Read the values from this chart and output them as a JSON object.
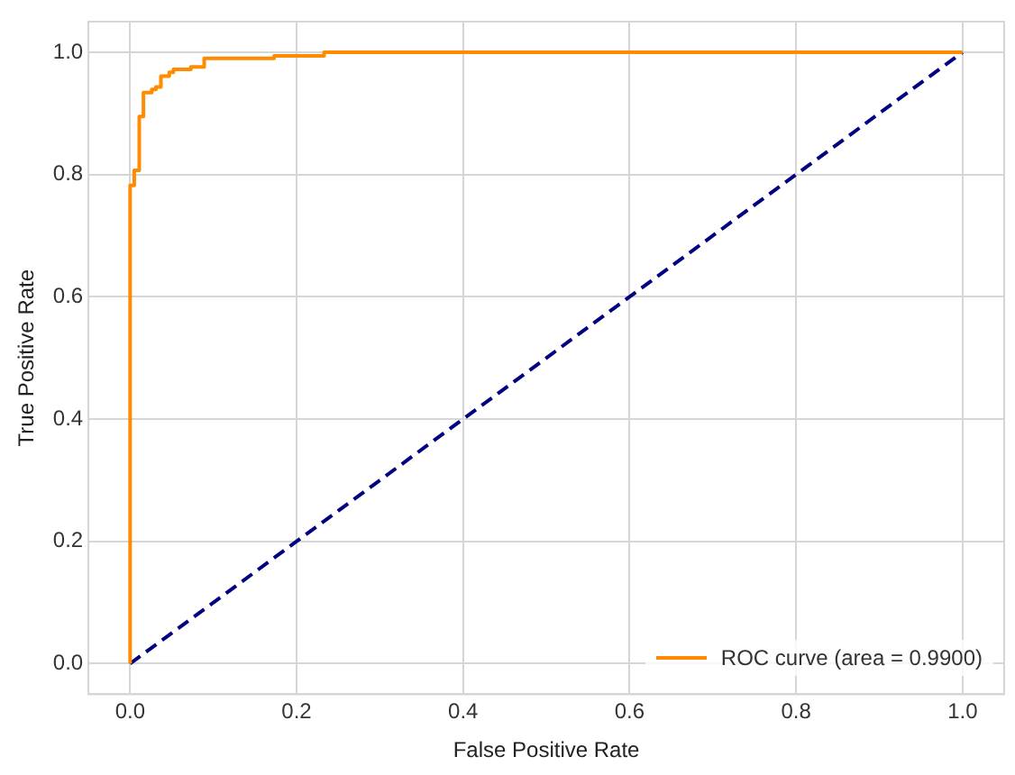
{
  "chart_data": {
    "type": "line",
    "xlabel": "False Positive Rate",
    "ylabel": "True Positive Rate",
    "series": [
      {
        "name": "ROC curve (area = 0.9900)",
        "type": "step",
        "color": "#ff8c00",
        "line_style": "solid",
        "x": [
          0,
          0,
          0.005,
          0.011,
          0.016,
          0.026,
          0.031,
          0.037,
          0.047,
          0.052,
          0.073,
          0.089,
          0.173,
          0.233,
          0.262,
          1
        ],
        "values": [
          0,
          0.748,
          0.782,
          0.807,
          0.895,
          0.934,
          0.939,
          0.943,
          0.961,
          0.967,
          0.972,
          0.976,
          0.99,
          0.994,
          1,
          1
        ]
      },
      {
        "type": "line",
        "color": "#000080",
        "line_style": "dashed",
        "x": [
          0,
          1
        ],
        "values": [
          0,
          1
        ]
      }
    ],
    "xlim": [
      -0.05,
      1.05
    ],
    "ylim": [
      -0.05,
      1.05
    ],
    "xticks": [
      {
        "value": 0,
        "label": "0.0"
      },
      {
        "value": 0.2,
        "label": "0.2"
      },
      {
        "value": 0.4,
        "label": "0.4"
      },
      {
        "value": 0.6,
        "label": "0.6"
      },
      {
        "value": 0.8,
        "label": "0.8"
      },
      {
        "value": 1,
        "label": "1.0"
      }
    ],
    "yticks": [
      {
        "value": 0,
        "label": "0.0"
      },
      {
        "value": 0.2,
        "label": "0.2"
      },
      {
        "value": 0.4,
        "label": "0.4"
      },
      {
        "value": 0.6,
        "label": "0.6"
      },
      {
        "value": 0.8,
        "label": "0.8"
      },
      {
        "value": 1,
        "label": "1.0"
      }
    ],
    "grid": true,
    "legend": "bottom right",
    "marker": "none"
  }
}
